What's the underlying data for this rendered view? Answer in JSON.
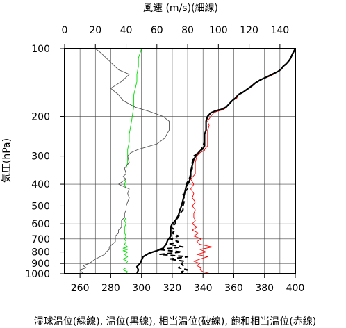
{
  "chart_data": {
    "type": "line",
    "title_top": "風速 (m/s)(細線)",
    "xlabel": "湿球温位(緑線), 温位(黒線), 相当温位(破線), 飽和相当温位(赤線)",
    "ylabel": "気圧(hPa)",
    "grid": true,
    "x_temp_range": [
      250,
      400
    ],
    "x_temp_ticks": [
      "260",
      "280",
      "300",
      "320",
      "340",
      "360",
      "380",
      "400"
    ],
    "x_wind_range": [
      0,
      150
    ],
    "x_wind_ticks": [
      "0",
      "20",
      "40",
      "60",
      "80",
      "100",
      "120",
      "140"
    ],
    "y_log_scale": true,
    "y_range": [
      100,
      1000
    ],
    "y_ticks": [
      "100",
      "200",
      "300",
      "400",
      "500",
      "600",
      "700",
      "800",
      "900",
      "1000"
    ],
    "series": [
      {
        "color": "#ff0000",
        "style": "solid-thin",
        "points": [
          [
            345,
            1000
          ],
          [
            340,
            980
          ],
          [
            338,
            960
          ],
          [
            339,
            940
          ],
          [
            336,
            920
          ],
          [
            338,
            900
          ],
          [
            334,
            880
          ],
          [
            338,
            860
          ],
          [
            343,
            840
          ],
          [
            336,
            820
          ],
          [
            342,
            800
          ],
          [
            338,
            780
          ],
          [
            346,
            760
          ],
          [
            338,
            740
          ],
          [
            336,
            720
          ],
          [
            339,
            700
          ],
          [
            334,
            680
          ],
          [
            337,
            660
          ],
          [
            333,
            640
          ],
          [
            336,
            620
          ],
          [
            333,
            600
          ],
          [
            335,
            580
          ],
          [
            334,
            560
          ],
          [
            334,
            540
          ],
          [
            335,
            520
          ],
          [
            333,
            500
          ],
          [
            335,
            480
          ],
          [
            333,
            460
          ],
          [
            334,
            440
          ],
          [
            332,
            420
          ],
          [
            334,
            400
          ],
          [
            332,
            380
          ],
          [
            335,
            360
          ],
          [
            335,
            340
          ],
          [
            335,
            320
          ],
          [
            336,
            300
          ],
          [
            338,
            290
          ],
          [
            341,
            283
          ],
          [
            341,
            280
          ],
          [
            343,
            270
          ],
          [
            343,
            260
          ],
          [
            343,
            250
          ],
          [
            343,
            240
          ],
          [
            343,
            230
          ],
          [
            344,
            220
          ],
          [
            343,
            210
          ],
          [
            345,
            200
          ],
          [
            347,
            193
          ],
          [
            349,
            190
          ],
          [
            353,
            187
          ],
          [
            355,
            183
          ],
          [
            357,
            177
          ],
          [
            359,
            170
          ],
          [
            362,
            166
          ],
          [
            363,
            160
          ],
          [
            365,
            157
          ],
          [
            368,
            153
          ],
          [
            371,
            147
          ],
          [
            373,
            143
          ],
          [
            376,
            140
          ],
          [
            379,
            136
          ],
          [
            383,
            133
          ],
          [
            386,
            130
          ],
          [
            389,
            126
          ],
          [
            391,
            123
          ],
          [
            392,
            120
          ],
          [
            394,
            117
          ],
          [
            396,
            113
          ],
          [
            397,
            110
          ],
          [
            398,
            106
          ],
          [
            399,
            103
          ],
          [
            400,
            100
          ]
        ]
      },
      {
        "color": "#000000",
        "style": "solid-thick",
        "points": [
          [
            297,
            1000
          ],
          [
            298,
            960
          ],
          [
            297,
            930
          ],
          [
            299,
            900
          ],
          [
            300,
            870
          ],
          [
            301,
            840
          ],
          [
            305,
            810
          ],
          [
            310,
            790
          ],
          [
            314,
            770
          ],
          [
            316,
            740
          ],
          [
            317,
            710
          ],
          [
            319,
            680
          ],
          [
            319,
            650
          ],
          [
            319,
            620
          ],
          [
            320,
            600
          ],
          [
            322,
            580
          ],
          [
            324,
            550
          ],
          [
            325,
            520
          ],
          [
            326,
            500
          ],
          [
            327,
            470
          ],
          [
            328,
            440
          ],
          [
            329,
            410
          ],
          [
            331,
            390
          ],
          [
            332,
            370
          ],
          [
            332,
            350
          ],
          [
            333,
            330
          ],
          [
            334,
            310
          ],
          [
            336,
            295
          ],
          [
            338,
            285
          ],
          [
            340,
            278
          ],
          [
            341,
            270
          ],
          [
            341,
            260
          ],
          [
            341,
            250
          ],
          [
            341,
            240
          ],
          [
            342,
            230
          ],
          [
            342,
            220
          ],
          [
            342,
            210
          ],
          [
            343,
            200
          ],
          [
            345,
            193
          ],
          [
            348,
            189
          ],
          [
            352,
            186
          ],
          [
            355,
            182
          ],
          [
            357,
            176
          ],
          [
            359,
            170
          ],
          [
            361,
            166
          ],
          [
            363,
            160
          ],
          [
            366,
            156
          ],
          [
            369,
            151
          ],
          [
            372,
            146
          ],
          [
            374,
            142
          ],
          [
            377,
            138
          ],
          [
            381,
            134
          ],
          [
            385,
            130
          ],
          [
            389,
            126
          ],
          [
            391,
            123
          ],
          [
            392,
            120
          ],
          [
            394,
            117
          ],
          [
            396,
            113
          ],
          [
            397,
            110
          ],
          [
            398,
            106
          ],
          [
            399,
            103
          ],
          [
            400,
            100
          ]
        ]
      },
      {
        "color": "#000000",
        "style": "dashed",
        "points": [
          [
            327,
            1000
          ],
          [
            326,
            980
          ],
          [
            330,
            960
          ],
          [
            324,
            940
          ],
          [
            327,
            920
          ],
          [
            326,
            900
          ],
          [
            328,
            880
          ],
          [
            318,
            860
          ],
          [
            330,
            840
          ],
          [
            312,
            820
          ],
          [
            326,
            800
          ],
          [
            311,
            780
          ],
          [
            327,
            760
          ],
          [
            318,
            740
          ],
          [
            324,
            720
          ],
          [
            319,
            700
          ],
          [
            324,
            680
          ],
          [
            320,
            660
          ],
          [
            322,
            640
          ],
          [
            319,
            620
          ],
          [
            322,
            600
          ],
          [
            322,
            580
          ],
          [
            324,
            560
          ],
          [
            325,
            540
          ],
          [
            327,
            520
          ],
          [
            327,
            500
          ],
          [
            328,
            470
          ],
          [
            327,
            440
          ],
          [
            330,
            420
          ],
          [
            329,
            400
          ],
          [
            331,
            380
          ],
          [
            332,
            360
          ],
          [
            333,
            340
          ],
          [
            333,
            320
          ],
          [
            334,
            300
          ],
          [
            337,
            290
          ],
          [
            339,
            280
          ],
          [
            340,
            270
          ],
          [
            341,
            260
          ],
          [
            341,
            250
          ],
          [
            341,
            240
          ],
          [
            342,
            230
          ],
          [
            342,
            220
          ],
          [
            342,
            210
          ],
          [
            343,
            200
          ],
          [
            345,
            193
          ],
          [
            348,
            189
          ],
          [
            352,
            186
          ],
          [
            355,
            182
          ],
          [
            357,
            176
          ],
          [
            359,
            170
          ],
          [
            361,
            166
          ],
          [
            363,
            160
          ],
          [
            366,
            156
          ],
          [
            369,
            151
          ],
          [
            372,
            146
          ],
          [
            374,
            142
          ],
          [
            377,
            138
          ],
          [
            381,
            134
          ],
          [
            385,
            130
          ],
          [
            389,
            126
          ],
          [
            391,
            123
          ],
          [
            392,
            120
          ],
          [
            394,
            117
          ],
          [
            396,
            113
          ],
          [
            397,
            110
          ],
          [
            398,
            106
          ],
          [
            399,
            103
          ],
          [
            400,
            100
          ]
        ]
      },
      {
        "color": "#00dd00",
        "style": "solid-thin",
        "points": [
          [
            290,
            1000
          ],
          [
            291,
            980
          ],
          [
            288,
            960
          ],
          [
            290,
            940
          ],
          [
            290,
            920
          ],
          [
            290,
            900
          ],
          [
            291,
            880
          ],
          [
            288,
            860
          ],
          [
            291,
            840
          ],
          [
            289,
            820
          ],
          [
            291,
            800
          ],
          [
            288,
            790
          ],
          [
            291,
            780
          ],
          [
            288,
            770
          ],
          [
            291,
            760
          ],
          [
            289,
            740
          ],
          [
            290,
            720
          ],
          [
            289,
            700
          ],
          [
            290,
            680
          ],
          [
            289,
            660
          ],
          [
            289,
            640
          ],
          [
            289,
            620
          ],
          [
            290,
            600
          ],
          [
            289,
            580
          ],
          [
            290,
            560
          ],
          [
            290,
            540
          ],
          [
            290,
            520
          ],
          [
            290,
            500
          ],
          [
            290,
            480
          ],
          [
            290,
            460
          ],
          [
            290,
            440
          ],
          [
            290,
            420
          ],
          [
            289,
            400
          ],
          [
            290,
            380
          ],
          [
            290,
            360
          ],
          [
            290,
            340
          ],
          [
            291,
            320
          ],
          [
            291,
            300
          ],
          [
            291,
            280
          ],
          [
            292,
            260
          ],
          [
            292,
            240
          ],
          [
            293,
            220
          ],
          [
            294,
            200
          ],
          [
            295,
            180
          ],
          [
            295,
            160
          ],
          [
            296,
            150
          ],
          [
            297,
            140
          ],
          [
            297,
            130
          ],
          [
            298,
            120
          ],
          [
            298,
            110
          ],
          [
            299,
            105
          ],
          [
            300,
            100
          ]
        ]
      },
      {
        "color": "#555555",
        "style": "solid-thin",
        "axis": "wind",
        "points": [
          [
            12,
            1000
          ],
          [
            11,
            980
          ],
          [
            10,
            960
          ],
          [
            14,
            940
          ],
          [
            12,
            920
          ],
          [
            16,
            900
          ],
          [
            18,
            880
          ],
          [
            20,
            860
          ],
          [
            23,
            840
          ],
          [
            26,
            820
          ],
          [
            27,
            800
          ],
          [
            29,
            780
          ],
          [
            29,
            760
          ],
          [
            31,
            740
          ],
          [
            33,
            720
          ],
          [
            33,
            700
          ],
          [
            33,
            680
          ],
          [
            35,
            660
          ],
          [
            35,
            640
          ],
          [
            37,
            620
          ],
          [
            37,
            600
          ],
          [
            37,
            580
          ],
          [
            39,
            560
          ],
          [
            39,
            540
          ],
          [
            40,
            520
          ],
          [
            40,
            500
          ],
          [
            41,
            480
          ],
          [
            42,
            460
          ],
          [
            41,
            440
          ],
          [
            42,
            420
          ],
          [
            35,
            400
          ],
          [
            40,
            380
          ],
          [
            38,
            370
          ],
          [
            40,
            360
          ],
          [
            39,
            340
          ],
          [
            42,
            320
          ],
          [
            41,
            300
          ],
          [
            43,
            290
          ],
          [
            48,
            280
          ],
          [
            60,
            265
          ],
          [
            65,
            250
          ],
          [
            68,
            230
          ],
          [
            68,
            210
          ],
          [
            64,
            200
          ],
          [
            55,
            190
          ],
          [
            46,
            182
          ],
          [
            38,
            170
          ],
          [
            35,
            160
          ],
          [
            30,
            150
          ],
          [
            37,
            140
          ],
          [
            42,
            130
          ],
          [
            35,
            124
          ],
          [
            30,
            115
          ],
          [
            24,
            105
          ],
          [
            20,
            100
          ]
        ]
      }
    ]
  }
}
